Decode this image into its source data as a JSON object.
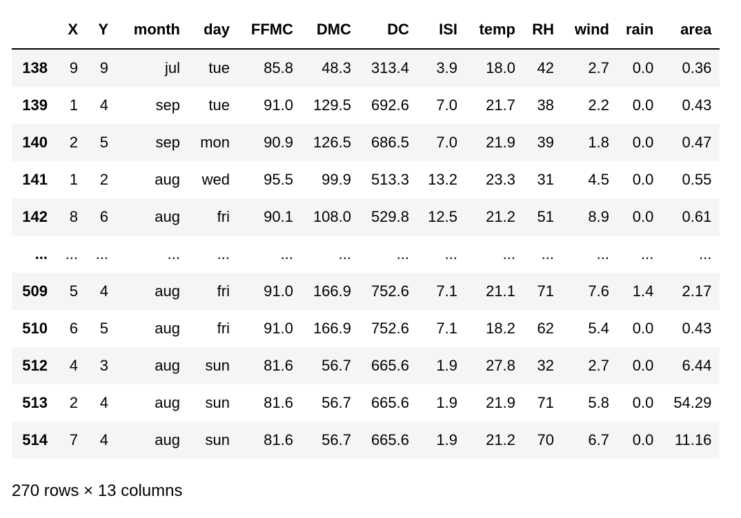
{
  "table": {
    "columns": [
      "",
      "X",
      "Y",
      "month",
      "day",
      "FFMC",
      "DMC",
      "DC",
      "ISI",
      "temp",
      "RH",
      "wind",
      "rain",
      "area"
    ],
    "rows": [
      {
        "index": "138",
        "cells": [
          "9",
          "9",
          "jul",
          "tue",
          "85.8",
          "48.3",
          "313.4",
          "3.9",
          "18.0",
          "42",
          "2.7",
          "0.0",
          "0.36"
        ]
      },
      {
        "index": "139",
        "cells": [
          "1",
          "4",
          "sep",
          "tue",
          "91.0",
          "129.5",
          "692.6",
          "7.0",
          "21.7",
          "38",
          "2.2",
          "0.0",
          "0.43"
        ]
      },
      {
        "index": "140",
        "cells": [
          "2",
          "5",
          "sep",
          "mon",
          "90.9",
          "126.5",
          "686.5",
          "7.0",
          "21.9",
          "39",
          "1.8",
          "0.0",
          "0.47"
        ]
      },
      {
        "index": "141",
        "cells": [
          "1",
          "2",
          "aug",
          "wed",
          "95.5",
          "99.9",
          "513.3",
          "13.2",
          "23.3",
          "31",
          "4.5",
          "0.0",
          "0.55"
        ]
      },
      {
        "index": "142",
        "cells": [
          "8",
          "6",
          "aug",
          "fri",
          "90.1",
          "108.0",
          "529.8",
          "12.5",
          "21.2",
          "51",
          "8.9",
          "0.0",
          "0.61"
        ]
      },
      {
        "index": "...",
        "cells": [
          "...",
          "...",
          "...",
          "...",
          "...",
          "...",
          "...",
          "...",
          "...",
          "...",
          "...",
          "...",
          "..."
        ]
      },
      {
        "index": "509",
        "cells": [
          "5",
          "4",
          "aug",
          "fri",
          "91.0",
          "166.9",
          "752.6",
          "7.1",
          "21.1",
          "71",
          "7.6",
          "1.4",
          "2.17"
        ]
      },
      {
        "index": "510",
        "cells": [
          "6",
          "5",
          "aug",
          "fri",
          "91.0",
          "166.9",
          "752.6",
          "7.1",
          "18.2",
          "62",
          "5.4",
          "0.0",
          "0.43"
        ]
      },
      {
        "index": "512",
        "cells": [
          "4",
          "3",
          "aug",
          "sun",
          "81.6",
          "56.7",
          "665.6",
          "1.9",
          "27.8",
          "32",
          "2.7",
          "0.0",
          "6.44"
        ]
      },
      {
        "index": "513",
        "cells": [
          "2",
          "4",
          "aug",
          "sun",
          "81.6",
          "56.7",
          "665.6",
          "1.9",
          "21.9",
          "71",
          "5.8",
          "0.0",
          "54.29"
        ]
      },
      {
        "index": "514",
        "cells": [
          "7",
          "4",
          "aug",
          "sun",
          "81.6",
          "56.7",
          "665.6",
          "1.9",
          "21.2",
          "70",
          "6.7",
          "0.0",
          "11.16"
        ]
      }
    ]
  },
  "footer": {
    "shape_text": "270 rows × 13 columns"
  }
}
